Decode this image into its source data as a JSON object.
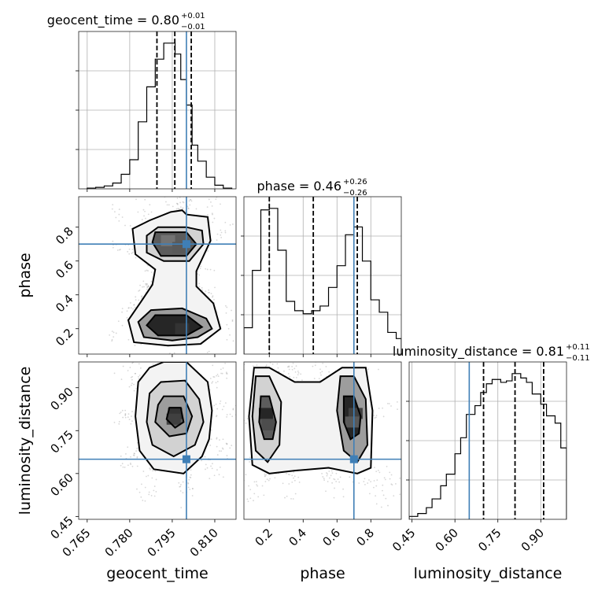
{
  "chart_data": {
    "type": "corner",
    "parameters": [
      "geocent_time",
      "phase",
      "luminosity_distance"
    ],
    "truths": {
      "geocent_time": 0.8,
      "phase": 0.7,
      "luminosity_distance": 0.65
    },
    "colors": {
      "truth": "#3f7fb6",
      "hist": "#000000",
      "grid": "#b0b0b0"
    },
    "panel_titles": [
      {
        "text": "geocent_time = 0.80",
        "sup": "+0.01",
        "sub": "−0.01"
      },
      {
        "text": "phase = 0.46",
        "sup": "+0.26",
        "sub": "−0.26"
      },
      {
        "text": "luminosity_distance = 0.81",
        "sup": "+0.11",
        "sub": "−0.11"
      }
    ],
    "axes": {
      "geocent_time": {
        "range": [
          0.762,
          0.8175
        ],
        "ticks": [
          0.765,
          0.78,
          0.795,
          0.81
        ],
        "tick_labels": [
          "0.765",
          "0.780",
          "0.795",
          "0.810"
        ]
      },
      "phase": {
        "range": [
          0.05,
          0.98
        ],
        "ticks": [
          0.2,
          0.4,
          0.6,
          0.8
        ],
        "tick_labels": [
          "0.2",
          "0.4",
          "0.6",
          "0.8"
        ]
      },
      "luminosity_distance": {
        "range": [
          0.44,
          0.99
        ],
        "ticks": [
          0.45,
          0.6,
          0.75,
          0.9
        ],
        "tick_labels": [
          "0.45",
          "0.60",
          "0.75",
          "0.90"
        ]
      }
    },
    "histograms": [
      {
        "parameter": "geocent_time",
        "edges": [
          0.765,
          0.768,
          0.771,
          0.774,
          0.777,
          0.78,
          0.783,
          0.786,
          0.789,
          0.792,
          0.794,
          0.796,
          0.798,
          0.8,
          0.802,
          0.804,
          0.807,
          0.81,
          0.813,
          0.816
        ],
        "counts": [
          1,
          2,
          4,
          8,
          20,
          40,
          92,
          140,
          178,
          200,
          200,
          185,
          150,
          115,
          60,
          38,
          16,
          5,
          1
        ],
        "quantiles": [
          0.7896,
          0.7959,
          0.8017
        ]
      },
      {
        "parameter": "phase",
        "edges": [
          0.05,
          0.1,
          0.15,
          0.2,
          0.25,
          0.3,
          0.35,
          0.4,
          0.45,
          0.5,
          0.55,
          0.6,
          0.65,
          0.7,
          0.75,
          0.8,
          0.85,
          0.9,
          0.95,
          0.98
        ],
        "counts": [
          1.7,
          5.4,
          9.3,
          9.4,
          6.7,
          3.4,
          2.8,
          2.6,
          2.8,
          3.1,
          4.3,
          5.7,
          7.7,
          8.2,
          6.0,
          3.5,
          2.7,
          1.4,
          1.0
        ],
        "quantiles": [
          0.2,
          0.46,
          0.72
        ]
      },
      {
        "parameter": "luminosity_distance",
        "edges": [
          0.44,
          0.47,
          0.5,
          0.52,
          0.55,
          0.57,
          0.6,
          0.62,
          0.64,
          0.67,
          0.69,
          0.71,
          0.73,
          0.76,
          0.78,
          0.8,
          0.83,
          0.85,
          0.87,
          0.9,
          0.92,
          0.95,
          0.97,
          0.99
        ],
        "counts": [
          0.2,
          0.4,
          0.8,
          1.4,
          2.3,
          3.1,
          4.5,
          5.6,
          7.2,
          7.8,
          8.7,
          9.3,
          9.6,
          9.4,
          9.5,
          10,
          9.7,
          9.4,
          8.6,
          7.9,
          7.1,
          6.6,
          4.9
        ],
        "quantiles": [
          0.7,
          0.81,
          0.91
        ]
      }
    ],
    "contours": [
      {
        "x": "geocent_time",
        "y": "phase",
        "levels": [
          [
            [
              0.7945,
              0.89
            ],
            [
              0.7985,
              0.9
            ],
            [
              0.8,
              0.875
            ],
            [
              0.8075,
              0.86
            ],
            [
              0.8085,
              0.72
            ],
            [
              0.8035,
              0.54
            ],
            [
              0.8035,
              0.45
            ],
            [
              0.8095,
              0.35
            ],
            [
              0.812,
              0.2
            ],
            [
              0.805,
              0.11
            ],
            [
              0.7935,
              0.1
            ],
            [
              0.7815,
              0.12
            ],
            [
              0.7795,
              0.25
            ],
            [
              0.784,
              0.36
            ],
            [
              0.788,
              0.46
            ],
            [
              0.789,
              0.55
            ],
            [
              0.782,
              0.64
            ],
            [
              0.781,
              0.79
            ],
            [
              0.787,
              0.84
            ]
          ],
          [
            [
              0.79,
              0.8
            ],
            [
              0.8,
              0.8
            ],
            [
              0.8055,
              0.78
            ],
            [
              0.806,
              0.7
            ],
            [
              0.801,
              0.6
            ],
            [
              0.792,
              0.6
            ],
            [
              0.786,
              0.65
            ],
            [
              0.786,
              0.75
            ]
          ],
          [
            [
              0.7875,
              0.31
            ],
            [
              0.7985,
              0.32
            ],
            [
              0.807,
              0.26
            ],
            [
              0.809,
              0.2
            ],
            [
              0.804,
              0.15
            ],
            [
              0.795,
              0.13
            ],
            [
              0.785,
              0.15
            ],
            [
              0.783,
              0.24
            ]
          ],
          [
            [
              0.789,
              0.77
            ],
            [
              0.8,
              0.77
            ],
            [
              0.8035,
              0.7
            ],
            [
              0.8,
              0.63
            ],
            [
              0.791,
              0.63
            ],
            [
              0.788,
              0.71
            ]
          ],
          [
            [
              0.789,
              0.28
            ],
            [
              0.8,
              0.28
            ],
            [
              0.8055,
              0.21
            ],
            [
              0.8,
              0.16
            ],
            [
              0.79,
              0.16
            ],
            [
              0.786,
              0.22
            ]
          ]
        ],
        "dense": [
          [
            0.7935,
            0.72,
            0.55
          ],
          [
            0.7975,
            0.68,
            0.65
          ],
          [
            0.7955,
            0.22,
            0.85
          ],
          [
            0.7985,
            0.2,
            0.8
          ]
        ]
      },
      {
        "x": "geocent_time",
        "y": "luminosity_distance",
        "levels": [
          [
            [
              0.792,
              0.99
            ],
            [
              0.8,
              0.99
            ],
            [
              0.8075,
              0.92
            ],
            [
              0.809,
              0.82
            ],
            [
              0.808,
              0.72
            ],
            [
              0.8055,
              0.66
            ],
            [
              0.799,
              0.6
            ],
            [
              0.7885,
              0.615
            ],
            [
              0.7835,
              0.68
            ],
            [
              0.782,
              0.8
            ],
            [
              0.783,
              0.92
            ],
            [
              0.787,
              0.97
            ]
          ],
          [
            [
              0.791,
              0.92
            ],
            [
              0.7995,
              0.925
            ],
            [
              0.8045,
              0.86
            ],
            [
              0.806,
              0.78
            ],
            [
              0.803,
              0.7
            ],
            [
              0.7955,
              0.66
            ],
            [
              0.788,
              0.7
            ],
            [
              0.786,
              0.78
            ],
            [
              0.787,
              0.88
            ]
          ],
          [
            [
              0.792,
              0.87
            ],
            [
              0.799,
              0.87
            ],
            [
              0.802,
              0.8
            ],
            [
              0.8,
              0.74
            ],
            [
              0.794,
              0.73
            ],
            [
              0.789,
              0.78
            ],
            [
              0.79,
              0.84
            ]
          ],
          [
            [
              0.794,
              0.83
            ],
            [
              0.798,
              0.83
            ],
            [
              0.799,
              0.78
            ],
            [
              0.796,
              0.76
            ],
            [
              0.793,
              0.79
            ]
          ]
        ],
        "dense": [
          [
            0.796,
            0.81,
            0.8
          ],
          [
            0.7955,
            0.79,
            0.75
          ]
        ]
      },
      {
        "x": "phase",
        "y": "luminosity_distance",
        "levels": [
          [
            [
              0.11,
              0.97
            ],
            [
              0.2,
              0.97
            ],
            [
              0.35,
              0.92
            ],
            [
              0.5,
              0.92
            ],
            [
              0.63,
              0.97
            ],
            [
              0.77,
              0.97
            ],
            [
              0.81,
              0.82
            ],
            [
              0.8,
              0.62
            ],
            [
              0.72,
              0.6
            ],
            [
              0.55,
              0.62
            ],
            [
              0.35,
              0.61
            ],
            [
              0.2,
              0.6
            ],
            [
              0.1,
              0.63
            ],
            [
              0.08,
              0.8
            ]
          ],
          [
            [
              0.12,
              0.94
            ],
            [
              0.2,
              0.94
            ],
            [
              0.27,
              0.85
            ],
            [
              0.26,
              0.7
            ],
            [
              0.19,
              0.64
            ],
            [
              0.12,
              0.68
            ],
            [
              0.1,
              0.8
            ]
          ],
          [
            [
              0.62,
              0.94
            ],
            [
              0.7,
              0.94
            ],
            [
              0.77,
              0.86
            ],
            [
              0.78,
              0.7
            ],
            [
              0.72,
              0.64
            ],
            [
              0.64,
              0.68
            ],
            [
              0.6,
              0.82
            ]
          ],
          [
            [
              0.15,
              0.87
            ],
            [
              0.2,
              0.87
            ],
            [
              0.24,
              0.78
            ],
            [
              0.22,
              0.72
            ],
            [
              0.17,
              0.72
            ],
            [
              0.14,
              0.78
            ]
          ],
          [
            [
              0.64,
              0.87
            ],
            [
              0.7,
              0.87
            ],
            [
              0.74,
              0.8
            ],
            [
              0.73,
              0.74
            ],
            [
              0.68,
              0.72
            ],
            [
              0.64,
              0.78
            ]
          ]
        ],
        "dense": [
          [
            0.18,
            0.81,
            0.85
          ],
          [
            0.195,
            0.77,
            0.7
          ],
          [
            0.71,
            0.81,
            0.75
          ],
          [
            0.69,
            0.78,
            0.65
          ]
        ]
      }
    ]
  }
}
